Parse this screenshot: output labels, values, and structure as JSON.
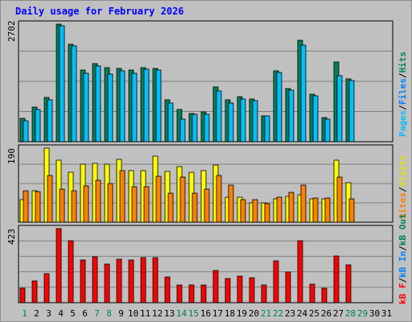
{
  "chart_data": {
    "type": "bar",
    "title": "Daily usage for February 2026",
    "categories": [
      "1",
      "2",
      "3",
      "4",
      "5",
      "6",
      "7",
      "8",
      "9",
      "10",
      "11",
      "12",
      "13",
      "14",
      "15",
      "16",
      "17",
      "18",
      "19",
      "20",
      "21",
      "22",
      "23",
      "24",
      "25",
      "26",
      "27",
      "28",
      "29",
      "30",
      "31"
    ],
    "weekend_days": [
      1,
      7,
      8,
      14,
      15,
      21,
      22,
      28,
      29
    ],
    "label_colors": {
      "weekday": "#000000",
      "weekend": "#00805c"
    },
    "panels": [
      {
        "name": "hits-files-pages",
        "ymax": 2702,
        "ymax_label": "2702",
        "series": [
          {
            "name": "Hits",
            "color": "#00805c",
            "values": [
              540,
              800,
              1010,
              2702,
              2240,
              1650,
              1800,
              1700,
              1680,
              1640,
              1710,
              1680,
              960,
              740,
              640,
              680,
              1250,
              960,
              1040,
              980,
              600,
              1620,
              1220,
              2340,
              1090,
              560,
              1830,
              1440,
              null,
              null,
              null
            ]
          },
          {
            "name": "Files",
            "color": "#00c0ff",
            "values": [
              480,
              740,
              960,
              2660,
              2200,
              1580,
              1740,
              1560,
              1620,
              1570,
              1660,
              1640,
              880,
              520,
              620,
              620,
              1160,
              880,
              980,
              950,
              600,
              1600,
              1180,
              2220,
              1050,
              520,
              1520,
              1400,
              null,
              null,
              null
            ]
          },
          {
            "name": "Pages",
            "color": "#00c0ff",
            "values": []
          }
        ],
        "legend": [
          "Pages",
          "Files",
          "Hits"
        ]
      },
      {
        "name": "visits-sites",
        "ymax": 190,
        "ymax_label": "190",
        "series": [
          {
            "name": "Visits",
            "color": "#ffff00",
            "values": [
              58,
              80,
              190,
              158,
              128,
              148,
              150,
              148,
              162,
              132,
              132,
              170,
              130,
              142,
              128,
              132,
              146,
              64,
              64,
              50,
              50,
              60,
              66,
              70,
              60,
              60,
              160,
              102,
              null,
              null,
              null
            ]
          },
          {
            "name": "Sites",
            "color": "#ff8000",
            "values": [
              80,
              78,
              120,
              85,
              80,
              92,
              108,
              100,
              132,
              90,
              90,
              118,
              75,
              115,
              75,
              84,
              120,
              96,
              58,
              58,
              48,
              64,
              76,
              96,
              62,
              62,
              116,
              60,
              null,
              null,
              null
            ]
          }
        ],
        "legend": [
          "Sites",
          "Visits"
        ]
      },
      {
        "name": "kbytes",
        "ymax": 423,
        "ymax_label": "423",
        "series": [
          {
            "name": "KBytes",
            "color": "#ff0000",
            "values": [
              82,
              124,
              164,
              423,
              353,
              244,
              260,
              220,
              248,
              244,
              258,
              256,
              148,
              100,
              102,
              100,
              182,
              140,
              154,
              142,
              100,
              240,
              176,
              353,
              104,
              82,
              266,
              218,
              null,
              null,
              null
            ]
          }
        ],
        "legend": [
          "KBytes",
          "KB In",
          "KB Out"
        ]
      }
    ],
    "legend_colors": {
      "Hits": "#00805c",
      "Files": "#0080ff",
      "Pages": "#00c0ff",
      "Visits": "#ffff00",
      "Sites": "#ff8000",
      "KB Out": "#00805c",
      "KB In": "#0080ff",
      "KB F": "#ff0000"
    }
  },
  "legends": {
    "top": {
      "pages": "Pages",
      "files": "Files",
      "hits": "Hits",
      "sep": "/"
    },
    "mid": {
      "sites": "Sites",
      "visits": "Visits",
      "sep": "/"
    },
    "bot": {
      "kbf": "kB F",
      "kbin": "kB In",
      "kbout": "kB Out",
      "sep": "/"
    }
  }
}
